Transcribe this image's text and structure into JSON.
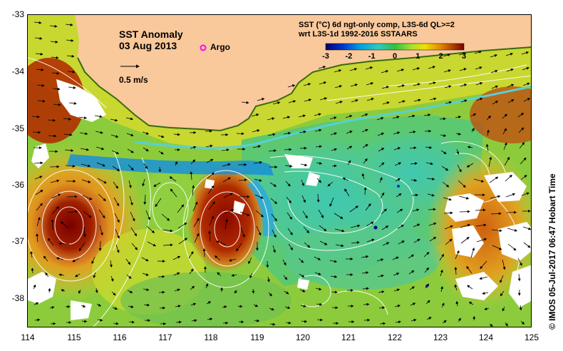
{
  "map": {
    "title": "SST Anomaly",
    "date": "03 Aug 2013",
    "argo_label": "Argo",
    "scale_label": "0.5 m/s",
    "credit": "© IMOS 05-Jul-2017 06:47 Hobart Time",
    "colorbar": {
      "line1": "SST (°C) 6d ngt-only comp, L3S-6d QL>=2",
      "line2": "wrt L3S-1d 1992-2016 SSTAARS",
      "ticks": [
        "-3",
        "-2",
        "-1",
        "0",
        "1",
        "2",
        "3"
      ],
      "colors": [
        "#08006e",
        "#0033cc",
        "#00a0e0",
        "#30c8c0",
        "#30c040",
        "#a8e030",
        "#f0e000",
        "#e08000",
        "#a03000",
        "#7a0000"
      ]
    },
    "lat_labels": [
      "-33",
      "-34",
      "-35",
      "-36",
      "-37",
      "-38"
    ],
    "lon_labels": [
      "114",
      "115",
      "116",
      "117",
      "118",
      "119",
      "120",
      "121",
      "122",
      "123",
      "124",
      "125"
    ],
    "colors": {
      "land": "#f9c89b",
      "no_data": "#ffffff",
      "argo_marker": "#ff00ff",
      "contour": "#ffffff",
      "vector": "#000000"
    }
  }
}
